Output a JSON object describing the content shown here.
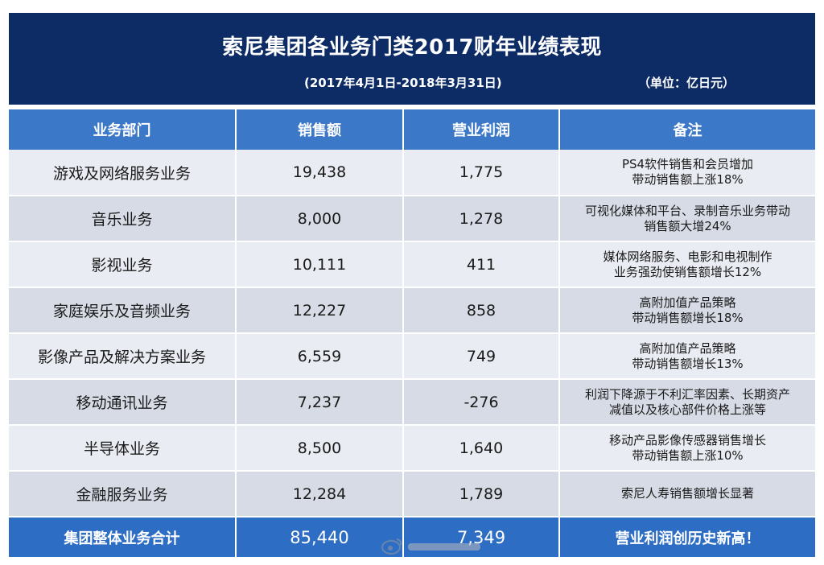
{
  "header": {
    "title": "索尼集团各业务门类2017财年业绩表现",
    "period": "(2017年4月1日-2018年3月31日)",
    "unit": "（单位：亿日元）"
  },
  "table": {
    "columns": [
      "业务部门",
      "销售额",
      "营业利润",
      "备注"
    ],
    "rows": [
      {
        "dept": "游戏及网络服务业务",
        "sales": "19,438",
        "profit": "1,775",
        "note": [
          "PS4软件销售和会员增加",
          "带动销售额上涨18%"
        ]
      },
      {
        "dept": "音乐业务",
        "sales": "8,000",
        "profit": "1,278",
        "note": [
          "可视化媒体和平台、录制音乐业务带动",
          "销售额大增24%"
        ]
      },
      {
        "dept": "影视业务",
        "sales": "10,111",
        "profit": "411",
        "note": [
          "媒体网络服务、电影和电视制作",
          "业务强劲使销售额增长12%"
        ]
      },
      {
        "dept": "家庭娱乐及音频业务",
        "sales": "12,227",
        "profit": "858",
        "note": [
          "高附加值产品策略",
          "带动销售额增长18%"
        ]
      },
      {
        "dept": "影像产品及解决方案业务",
        "sales": "6,559",
        "profit": "749",
        "note": [
          "高附加值产品策略",
          "带动销售额增长13%"
        ]
      },
      {
        "dept": "移动通讯业务",
        "sales": "7,237",
        "profit": "-276",
        "note": [
          "利润下降源于不利汇率因素、长期资产",
          "减值以及核心部件价格上涨等"
        ]
      },
      {
        "dept": "半导体业务",
        "sales": "8,500",
        "profit": "1,640",
        "note": [
          "移动产品影像传感器销售增长",
          "带动销售额上涨10%"
        ]
      },
      {
        "dept": "金融服务业务",
        "sales": "12,284",
        "profit": "1,789",
        "note": [
          "索尼人寿销售额增长显著"
        ]
      }
    ],
    "total": {
      "dept": "集团整体业务合计",
      "sales": "85,440",
      "profit": "7,349",
      "note": "营业利润创历史新高！"
    }
  },
  "colors": {
    "header_bg": "#0d2c66",
    "column_header_bg": "#3c78c8",
    "total_row_bg": "#2e6dc4",
    "row_light": "#e9ecf2",
    "row_dark": "#d6dbe6"
  },
  "watermark": {
    "icon": "weibo-logo-icon"
  }
}
